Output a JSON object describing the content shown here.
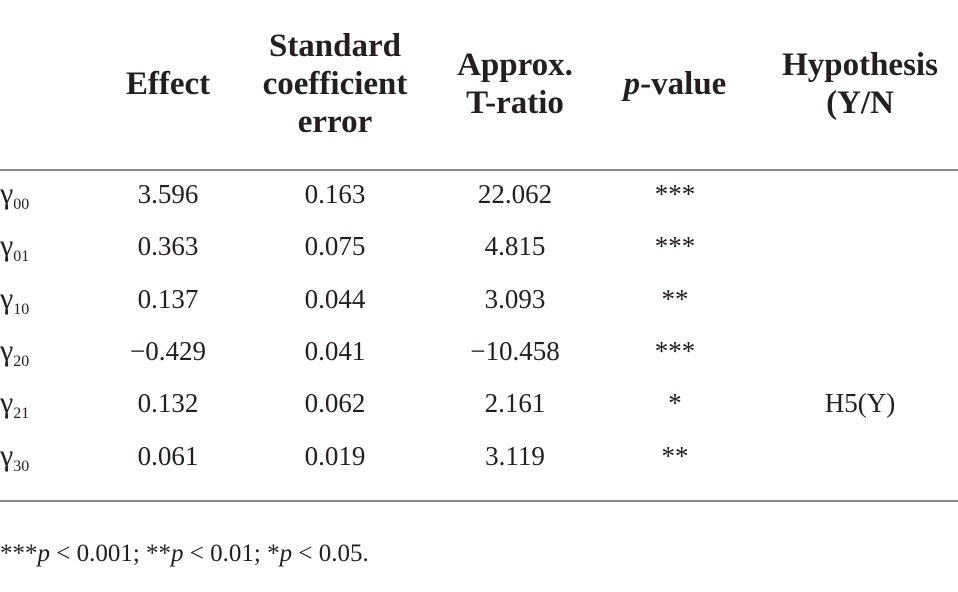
{
  "table": {
    "headers": {
      "effect": [
        "Effect"
      ],
      "std_error": [
        "Standard",
        "coefficient",
        "error"
      ],
      "t_ratio": [
        "Approx.",
        "T-ratio"
      ],
      "p_value": {
        "italic": "p",
        "rest": "-value"
      },
      "hypothesis": [
        "Hypothesis",
        "(Y/N"
      ]
    },
    "rows": [
      {
        "symbol": "γ",
        "sub": "00",
        "effect": "3.596",
        "se": "0.163",
        "t": "22.062",
        "p": "***",
        "hyp": ""
      },
      {
        "symbol": "γ",
        "sub": "01",
        "effect": "0.363",
        "se": "0.075",
        "t": "4.815",
        "p": "***",
        "hyp": ""
      },
      {
        "symbol": "γ",
        "sub": "10",
        "effect": "0.137",
        "se": "0.044",
        "t": "3.093",
        "p": "**",
        "hyp": ""
      },
      {
        "symbol": "γ",
        "sub": "20",
        "effect": "−0.429",
        "se": "0.041",
        "t": "−10.458",
        "p": "***",
        "hyp": ""
      },
      {
        "symbol": "γ",
        "sub": "21",
        "effect": "0.132",
        "se": "0.062",
        "t": "2.161",
        "p": "*",
        "hyp": "H5(Y)"
      },
      {
        "symbol": "γ",
        "sub": "30",
        "effect": "0.061",
        "se": "0.019",
        "t": "3.119",
        "p": "**",
        "hyp": ""
      }
    ]
  },
  "footnote": {
    "parts": [
      {
        "t": "***",
        "i": false
      },
      {
        "t": "p",
        "i": true
      },
      {
        "t": " < 0.001; **",
        "i": false
      },
      {
        "t": "p",
        "i": true
      },
      {
        "t": " < 0.01; *",
        "i": false
      },
      {
        "t": "p",
        "i": true
      },
      {
        "t": " < 0.05.",
        "i": false
      }
    ]
  },
  "colors": {
    "text": "#231f20",
    "rule": "#8a8a8a",
    "background": "#ffffff"
  }
}
